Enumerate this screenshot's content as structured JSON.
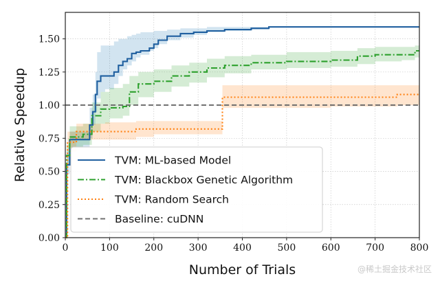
{
  "chart_data": {
    "type": "line",
    "title": "",
    "xlabel": "Number of Trials",
    "ylabel": "Relative Speedup",
    "xlim": [
      0,
      800
    ],
    "ylim": [
      0,
      1.7
    ],
    "xticks": [
      0,
      100,
      200,
      300,
      400,
      500,
      600,
      700,
      800
    ],
    "yticks": [
      0.0,
      0.25,
      0.5,
      0.75,
      1.0,
      1.25,
      1.5
    ],
    "ytick_labels": [
      "0.00",
      "0.25",
      "0.50",
      "0.75",
      "1.00",
      "1.25",
      "1.50"
    ],
    "grid": true,
    "legend_position": "lower-left",
    "series": [
      {
        "name": "TVM: ML-based Model",
        "style": "solid",
        "color": "#1f5f9f",
        "band_color": "#1f77b4",
        "x": [
          0,
          3,
          10,
          30,
          55,
          62,
          68,
          72,
          80,
          90,
          110,
          120,
          130,
          140,
          150,
          160,
          170,
          190,
          200,
          210,
          230,
          260,
          290,
          320,
          360,
          420,
          460,
          550,
          800
        ],
        "y": [
          0.0,
          0.55,
          0.74,
          0.74,
          0.85,
          0.95,
          1.08,
          1.18,
          1.22,
          1.22,
          1.25,
          1.3,
          1.33,
          1.35,
          1.39,
          1.4,
          1.41,
          1.43,
          1.46,
          1.49,
          1.52,
          1.54,
          1.55,
          1.56,
          1.57,
          1.58,
          1.59,
          1.59,
          1.59
        ],
        "lower": [
          0.0,
          0.48,
          0.68,
          0.68,
          0.75,
          0.85,
          0.95,
          1.05,
          1.1,
          1.12,
          1.16,
          1.22,
          1.27,
          1.3,
          1.33,
          1.36,
          1.38,
          1.41,
          1.43,
          1.46,
          1.49,
          1.51,
          1.53,
          1.55,
          1.56,
          1.57,
          1.59,
          1.59,
          1.59
        ],
        "upper": [
          0.0,
          0.65,
          0.8,
          0.8,
          0.98,
          1.08,
          1.25,
          1.4,
          1.45,
          1.45,
          1.48,
          1.5,
          1.5,
          1.52,
          1.53,
          1.54,
          1.55,
          1.55,
          1.56,
          1.56,
          1.57,
          1.58,
          1.58,
          1.59,
          1.59,
          1.59,
          1.59,
          1.59,
          1.59
        ]
      },
      {
        "name": "TVM: Blackbox Genetic Algorithm",
        "style": "dashdot",
        "color": "#2ca02c",
        "band_color": "#2ca02c",
        "x": [
          0,
          3,
          10,
          40,
          60,
          80,
          100,
          130,
          145,
          165,
          200,
          240,
          280,
          320,
          360,
          420,
          500,
          600,
          660,
          700,
          760,
          790,
          800
        ],
        "y": [
          0.0,
          0.62,
          0.76,
          0.78,
          0.92,
          0.97,
          0.98,
          0.99,
          1.1,
          1.16,
          1.18,
          1.22,
          1.25,
          1.28,
          1.3,
          1.32,
          1.33,
          1.34,
          1.37,
          1.38,
          1.38,
          1.41,
          1.41
        ],
        "lower": [
          0.0,
          0.55,
          0.68,
          0.7,
          0.8,
          0.86,
          0.9,
          0.92,
          1.0,
          1.06,
          1.1,
          1.14,
          1.17,
          1.21,
          1.24,
          1.27,
          1.28,
          1.29,
          1.31,
          1.33,
          1.34,
          1.36,
          1.36
        ],
        "upper": [
          0.0,
          0.7,
          0.84,
          0.86,
          1.02,
          1.1,
          1.13,
          1.16,
          1.22,
          1.25,
          1.27,
          1.3,
          1.32,
          1.35,
          1.37,
          1.38,
          1.4,
          1.41,
          1.43,
          1.44,
          1.44,
          1.45,
          1.45
        ]
      },
      {
        "name": "TVM: Random Search",
        "style": "dotted",
        "color": "#ff7f0e",
        "band_color": "#ff7f0e",
        "x": [
          0,
          5,
          25,
          90,
          160,
          200,
          300,
          355,
          400,
          500,
          600,
          700,
          750,
          800
        ],
        "y": [
          0.0,
          0.72,
          0.8,
          0.8,
          0.82,
          0.82,
          0.82,
          1.06,
          1.06,
          1.06,
          1.06,
          1.06,
          1.08,
          1.08
        ],
        "lower": [
          0.0,
          0.65,
          0.74,
          0.74,
          0.76,
          0.78,
          0.78,
          0.98,
          0.98,
          0.98,
          0.99,
          0.99,
          1.0,
          1.0
        ],
        "upper": [
          0.0,
          0.8,
          0.86,
          0.87,
          0.88,
          0.88,
          0.88,
          1.15,
          1.15,
          1.15,
          1.15,
          1.15,
          1.15,
          1.15
        ]
      },
      {
        "name": "Baseline: cuDNN",
        "style": "dashed",
        "color": "#707070",
        "x": [
          0,
          800
        ],
        "y": [
          1.0,
          1.0
        ]
      }
    ]
  },
  "watermark": "@稀土掘金技术社区"
}
